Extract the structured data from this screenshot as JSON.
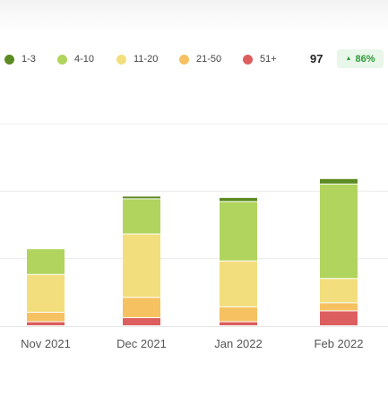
{
  "colors": {
    "1-3": "#5b8a22",
    "4-10": "#b0d45e",
    "11-20": "#f3de7e",
    "21-50": "#f6c160",
    "51+": "#dc5e5e"
  },
  "legend": [
    {
      "label": "1-3",
      "color": "#5b8a22"
    },
    {
      "label": "4-10",
      "color": "#b0d45e"
    },
    {
      "label": "11-20",
      "color": "#f3de7e"
    },
    {
      "label": "21-50",
      "color": "#f6c160"
    },
    {
      "label": "51+",
      "color": "#dc5e5e"
    }
  ],
  "summary": {
    "total": "97",
    "change": "86%",
    "change_icon": "triangle-up-icon"
  },
  "chart_data": {
    "type": "bar",
    "stacked": true,
    "categories": [
      "Nov 2021",
      "Dec 2021",
      "Jan 2022",
      "Feb 2022"
    ],
    "series": [
      {
        "name": "51+",
        "values": [
          3,
          6,
          3,
          11
        ]
      },
      {
        "name": "21-50",
        "values": [
          7,
          15,
          11,
          6
        ]
      },
      {
        "name": "11-20",
        "values": [
          28,
          47,
          34,
          18
        ]
      },
      {
        "name": "4-10",
        "values": [
          19,
          26,
          44,
          70
        ]
      },
      {
        "name": "1-3",
        "values": [
          0,
          2,
          3,
          4
        ]
      }
    ],
    "ylim": [
      0,
      150
    ],
    "grid": true,
    "legend_position": "top"
  }
}
